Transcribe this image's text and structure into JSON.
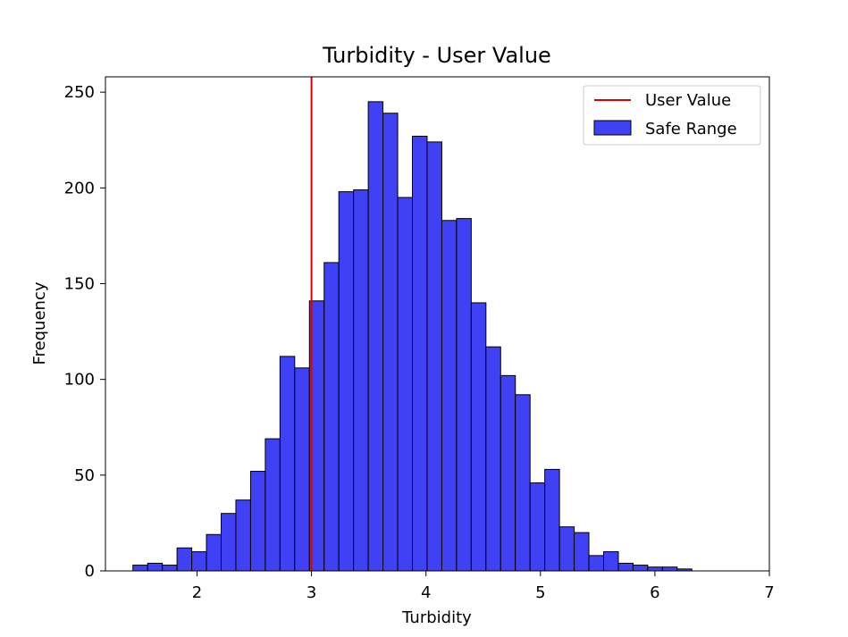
{
  "chart_data": {
    "type": "bar",
    "title": "Turbidity - User Value",
    "xlabel": "Turbidity",
    "ylabel": "Frequency",
    "xlim": [
      1.2,
      7.0
    ],
    "ylim": [
      0,
      258
    ],
    "xticks": [
      2,
      3,
      4,
      5,
      6,
      7
    ],
    "yticks": [
      0,
      50,
      100,
      150,
      200,
      250
    ],
    "grid": false,
    "legend_position": "top-right",
    "bin_start": 1.44,
    "bin_width": 0.1285,
    "series": [
      {
        "name": "Safe Range",
        "color": "#4040f5",
        "edge_color": "#000000",
        "values": [
          3,
          4,
          3,
          12,
          10,
          19,
          30,
          37,
          52,
          69,
          112,
          106,
          141,
          161,
          198,
          199,
          245,
          239,
          195,
          227,
          224,
          183,
          184,
          140,
          117,
          102,
          92,
          46,
          53,
          23,
          20,
          8,
          10,
          4,
          3,
          2,
          2,
          1
        ]
      }
    ],
    "reference_line": {
      "name": "User Value",
      "x": 3.0,
      "color": "#e00000"
    },
    "legend": [
      "User Value",
      "Safe Range"
    ]
  }
}
